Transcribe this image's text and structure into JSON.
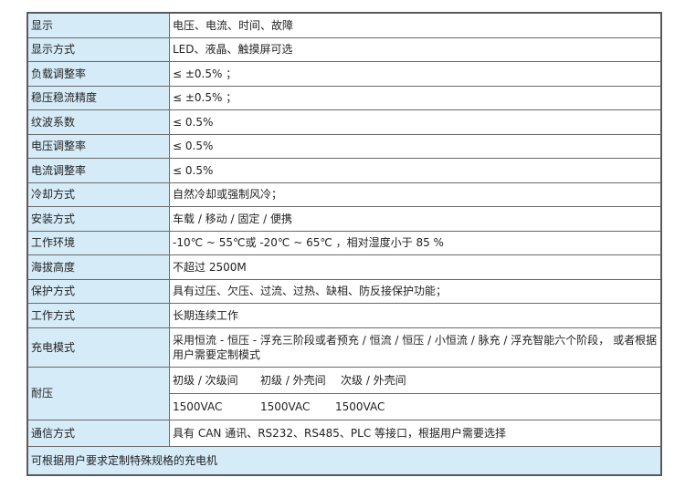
{
  "rows": [
    {
      "label": "显示",
      "value": "电压、电流、时间、故障"
    },
    {
      "label": "显示方式",
      "value": "LED、液晶、触摸屏可选"
    },
    {
      "label": "负载调整率",
      "value": "≤ ±0.5% ；"
    },
    {
      "label": "稳压稳流精度",
      "value": "≤ ±0.5% ；"
    },
    {
      "label": "纹波系数",
      "value": "≤ 0.5%"
    },
    {
      "label": "电压调整率",
      "value": "≤ 0.5%"
    },
    {
      "label": "电流调整率",
      "value": "≤ 0.5%"
    },
    {
      "label": "冷却方式",
      "value": "自然冷却或强制风冷；"
    },
    {
      "label": "安装方式",
      "value": "车载 / 移动 / 固定 / 便携"
    },
    {
      "label": "工作环境",
      "value": "-10℃ ~ 55℃或 -20℃ ~ 65℃ ，相对湿度小于 85 %"
    },
    {
      "label": "海拔高度",
      "value": "不超过 2500M"
    },
    {
      "label": "保护方式",
      "value": "具有过压、欠压、过流、过热、缺相、防反接保护功能；"
    },
    {
      "label": "工作方式",
      "value": "长期连续工作"
    },
    {
      "label": "充电模式",
      "value": "采用恒流 - 恒压 - 浮充三阶段或者预充 / 恒流 / 恒压 / 小恒流 / 脉充 / 浮充智能六个阶段， 或者根据用户需要定制模式"
    }
  ],
  "withstand": {
    "label": "耐压",
    "headers": [
      "初级 / 次级间",
      "初级 / 外壳间",
      "次级 / 外壳间"
    ],
    "values": [
      "1500VAC",
      "1500VAC",
      "1500VAC"
    ]
  },
  "comm": {
    "label": "通信方式",
    "value": "具有 CAN 通讯、RS232、RS485、PLC 等接口，根据用户需要选择"
  },
  "footer": "可根据用户要求定制特殊规格的充电机"
}
